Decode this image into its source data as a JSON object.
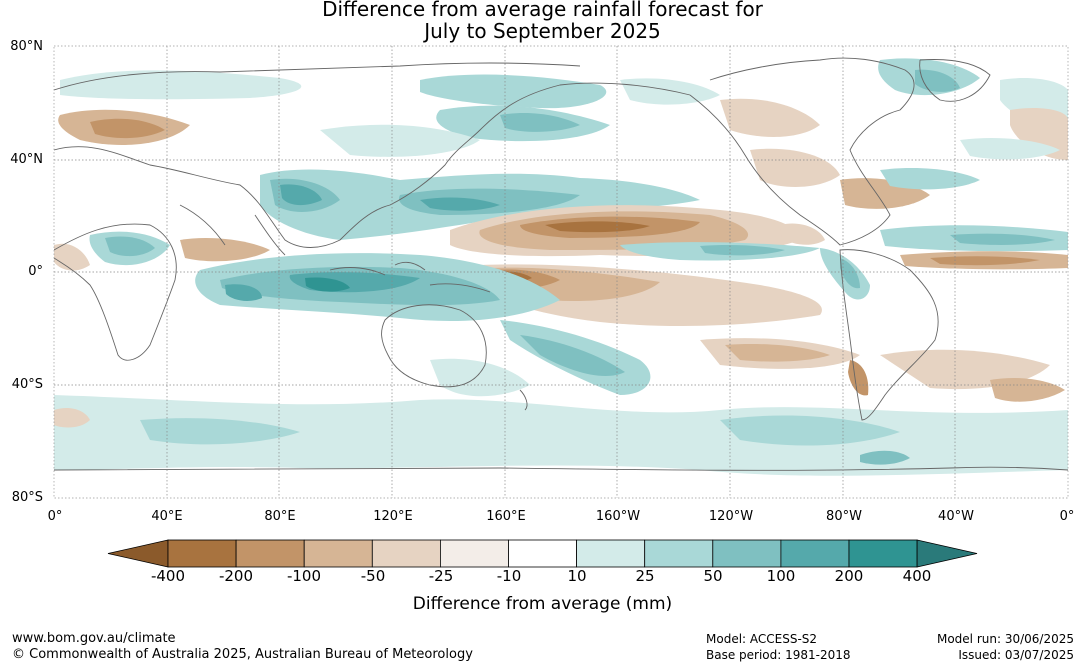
{
  "title_line1": "Difference from average rainfall forecast for",
  "title_line2": "July to September 2025",
  "lat_labels": [
    "80°N",
    "40°N",
    "0°",
    "40°S",
    "80°S"
  ],
  "lon_labels": [
    "0°",
    "40°E",
    "80°E",
    "120°E",
    "160°E",
    "160°W",
    "120°W",
    "80°W",
    "40°W",
    "0°"
  ],
  "colorbar": {
    "ticks": [
      "-400",
      "-200",
      "-100",
      "-50",
      "-25",
      "-10",
      "10",
      "25",
      "50",
      "100",
      "200",
      "400"
    ],
    "colors": [
      "#8b5a2b",
      "#a8733f",
      "#c29468",
      "#d6b595",
      "#e6d3c2",
      "#f3ede8",
      "#ffffff",
      "#d3ebe9",
      "#a9d8d7",
      "#7fc0c1",
      "#55a9ab",
      "#2f9492",
      "#2a7a7a"
    ],
    "title": "Difference from average (mm)"
  },
  "footer": {
    "website": "www.bom.gov.au/climate",
    "copyright": "© Commonwealth of Australia 2025, Australian Bureau of Meteorology",
    "model": "Model: ACCESS-S2",
    "base_period": "Base period: 1981-2018",
    "model_run": "Model run: 30/06/2025",
    "issued": "Issued: 03/07/2025"
  }
}
